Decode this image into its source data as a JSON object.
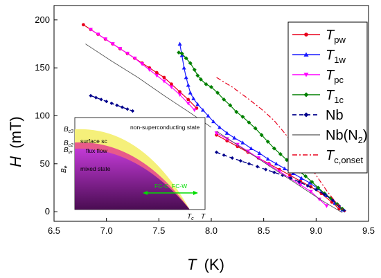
{
  "chart_data": {
    "type": "scatter",
    "xlabel": "T",
    "xlabel_unit": "(K)",
    "ylabel": "H",
    "ylabel_unit": "(mT)",
    "xlim": [
      6.5,
      9.5
    ],
    "ylim": [
      -10,
      215
    ],
    "x_ticks": [
      "6.5",
      "7.0",
      "7.5",
      "8.0",
      "8.5",
      "9.0",
      "9.5"
    ],
    "y_ticks": [
      "0",
      "50",
      "100",
      "150",
      "200"
    ],
    "legend_position": "top-right",
    "series": [
      {
        "key": "Tpw",
        "name": "T",
        "sub": "pw",
        "color": "#e8001c",
        "marker": "circle",
        "line": "solid",
        "segments": [
          [
            [
              6.78,
              195
            ],
            [
              6.85,
              190
            ],
            [
              6.92,
              185
            ],
            [
              6.99,
              180
            ],
            [
              7.06,
              175
            ],
            [
              7.13,
              170
            ],
            [
              7.2,
              165
            ],
            [
              7.27,
              160
            ],
            [
              7.34,
              155
            ],
            [
              7.41,
              150
            ],
            [
              7.48,
              145
            ],
            [
              7.55,
              140
            ],
            [
              7.62,
              133
            ],
            [
              7.7,
              125
            ],
            [
              7.78,
              117
            ],
            [
              7.86,
              108
            ]
          ],
          [
            [
              8.05,
              80
            ],
            [
              8.15,
              74
            ],
            [
              8.25,
              68
            ],
            [
              8.35,
              62
            ],
            [
              8.45,
              56
            ],
            [
              8.55,
              50
            ],
            [
              8.65,
              44
            ],
            [
              8.75,
              38
            ],
            [
              8.85,
              32
            ],
            [
              8.95,
              26
            ],
            [
              9.05,
              19
            ],
            [
              9.15,
              10
            ],
            [
              9.22,
              3
            ]
          ]
        ]
      },
      {
        "key": "T1w",
        "name": "T",
        "sub": "1w",
        "color": "#1a1aff",
        "marker": "triangle-up",
        "line": "solid",
        "segments": [
          [
            [
              7.7,
              175
            ],
            [
              7.72,
              163
            ],
            [
              7.74,
              150
            ],
            [
              7.76,
              140
            ],
            [
              7.78,
              132
            ],
            [
              7.8,
              124
            ],
            [
              7.83,
              118
            ],
            [
              7.87,
              112
            ],
            [
              7.92,
              106
            ],
            [
              7.97,
              100
            ],
            [
              8.02,
              94
            ],
            [
              8.08,
              88
            ],
            [
              8.15,
              82
            ],
            [
              8.22,
              77
            ],
            [
              8.3,
              72
            ],
            [
              8.38,
              66
            ],
            [
              8.46,
              61
            ],
            [
              8.54,
              55
            ],
            [
              8.62,
              50
            ],
            [
              8.7,
              45
            ],
            [
              8.78,
              40
            ],
            [
              8.86,
              35
            ],
            [
              8.94,
              30
            ],
            [
              9.02,
              24
            ],
            [
              9.1,
              17
            ],
            [
              9.18,
              9
            ],
            [
              9.25,
              2
            ]
          ]
        ]
      },
      {
        "key": "Tpc",
        "name": "T",
        "sub": "pc",
        "color": "#ff00ff",
        "marker": "triangle-down",
        "line": "solid",
        "segments": [
          [
            [
              6.85,
              190
            ],
            [
              6.92,
              185
            ],
            [
              6.99,
              180
            ],
            [
              7.06,
              175
            ],
            [
              7.13,
              170
            ],
            [
              7.2,
              165
            ],
            [
              7.27,
              160
            ],
            [
              7.34,
              154
            ],
            [
              7.41,
              148
            ],
            [
              7.48,
              142
            ],
            [
              7.55,
              136
            ],
            [
              7.62,
              130
            ],
            [
              7.7,
              122
            ],
            [
              7.78,
              113
            ],
            [
              7.84,
              106
            ]
          ],
          [
            [
              8.05,
              82
            ],
            [
              8.15,
              76
            ],
            [
              8.25,
              70
            ],
            [
              8.35,
              63
            ],
            [
              8.45,
              56
            ],
            [
              8.55,
              49
            ],
            [
              8.65,
              42
            ],
            [
              8.75,
              35
            ],
            [
              8.85,
              28
            ],
            [
              8.95,
              21
            ],
            [
              9.03,
              13
            ],
            [
              9.1,
              6
            ]
          ]
        ]
      },
      {
        "key": "T1c",
        "name": "T",
        "sub": "1c",
        "color": "#008000",
        "marker": "diamond",
        "line": "solid",
        "segments": [
          [
            [
              7.69,
              166
            ],
            [
              7.72,
              165
            ],
            [
              7.76,
              160
            ],
            [
              7.8,
              155
            ],
            [
              7.84,
              148
            ],
            [
              7.87,
              142
            ],
            [
              7.9,
              138
            ],
            [
              7.95,
              133
            ],
            [
              8.0,
              130
            ],
            [
              8.06,
              124
            ],
            [
              8.12,
              117
            ],
            [
              8.18,
              111
            ],
            [
              8.24,
              104
            ],
            [
              8.3,
              99
            ],
            [
              8.36,
              93
            ],
            [
              8.42,
              87
            ],
            [
              8.48,
              80
            ],
            [
              8.54,
              73
            ],
            [
              8.6,
              66
            ],
            [
              8.66,
              60
            ],
            [
              8.72,
              54
            ],
            [
              8.78,
              48
            ],
            [
              8.84,
              42
            ],
            [
              8.9,
              37
            ],
            [
              8.96,
              31
            ],
            [
              9.02,
              25
            ],
            [
              9.08,
              19
            ],
            [
              9.14,
              14
            ],
            [
              9.2,
              8
            ],
            [
              9.25,
              3
            ]
          ]
        ]
      },
      {
        "key": "Nb",
        "name": "Nb",
        "sub": "",
        "color": "#00008b",
        "marker": "diamond",
        "line": "dashed",
        "segments": [
          [
            [
              6.85,
              121
            ],
            [
              6.9,
              119
            ],
            [
              6.95,
              117
            ],
            [
              7.0,
              115
            ],
            [
              7.05,
              113
            ],
            [
              7.1,
              111
            ],
            [
              7.15,
              109
            ],
            [
              7.2,
              107
            ],
            [
              7.25,
              105
            ]
          ],
          [
            [
              8.05,
              62
            ],
            [
              8.12,
              59
            ],
            [
              8.2,
              56
            ],
            [
              8.28,
              53
            ],
            [
              8.36,
              50
            ],
            [
              8.44,
              47
            ],
            [
              8.52,
              44
            ],
            [
              8.6,
              41
            ],
            [
              8.68,
              38
            ],
            [
              8.76,
              35
            ],
            [
              8.84,
              31
            ],
            [
              8.92,
              27
            ],
            [
              9.0,
              23
            ],
            [
              9.08,
              18
            ],
            [
              9.16,
              12
            ],
            [
              9.22,
              6
            ],
            [
              9.27,
              1
            ]
          ]
        ]
      },
      {
        "key": "NbN2",
        "name": "Nb(N",
        "sub": "2",
        "name_suffix": ")",
        "color": "#555555",
        "marker": "none",
        "line": "thin",
        "segments": [
          [
            [
              6.8,
              175
            ],
            [
              7.05,
              157
            ],
            [
              7.3,
              140
            ],
            [
              7.55,
              121
            ],
            [
              7.8,
              103
            ],
            [
              8.0,
              88
            ]
          ],
          [
            [
              8.05,
              84
            ],
            [
              8.3,
              66
            ],
            [
              8.55,
              48
            ],
            [
              8.8,
              30
            ],
            [
              9.05,
              12
            ],
            [
              9.25,
              -1
            ]
          ]
        ]
      },
      {
        "key": "Tconset",
        "name": "T",
        "sub": "c,onset",
        "color": "#e8001c",
        "marker": "none",
        "line": "dashdot",
        "segments": [
          [
            [
              8.05,
              140
            ],
            [
              8.2,
              130
            ],
            [
              8.35,
              118
            ],
            [
              8.5,
              105
            ],
            [
              8.6,
              95
            ],
            [
              8.7,
              82
            ],
            [
              8.8,
              68
            ],
            [
              8.9,
              55
            ],
            [
              9.0,
              38
            ],
            [
              9.1,
              22
            ],
            [
              9.2,
              8
            ],
            [
              9.28,
              0
            ]
          ]
        ]
      }
    ],
    "inset": {
      "ylabel": "B",
      "ylabel_sub": "e",
      "xlabel": "T",
      "tc_label": "T",
      "tc_sub": "c",
      "level_labels": [
        {
          "main": "B",
          "sub": "c3"
        },
        {
          "main": "B",
          "sub": "c2"
        },
        {
          "main": "B",
          "sub": "irr"
        }
      ],
      "regions": {
        "normal": "non-superconducting state",
        "surface": "surface sc",
        "flux": "flux flow",
        "mixed": "mixed state"
      },
      "arrow_labels": [
        "FC-C",
        "FC-W"
      ],
      "colors": {
        "surface": "#f5f07a",
        "flux": "#e85a8a",
        "mixed_top": "#c23ad6",
        "mixed_bottom": "#4a0c52",
        "arrow": "#00dd00"
      }
    }
  }
}
